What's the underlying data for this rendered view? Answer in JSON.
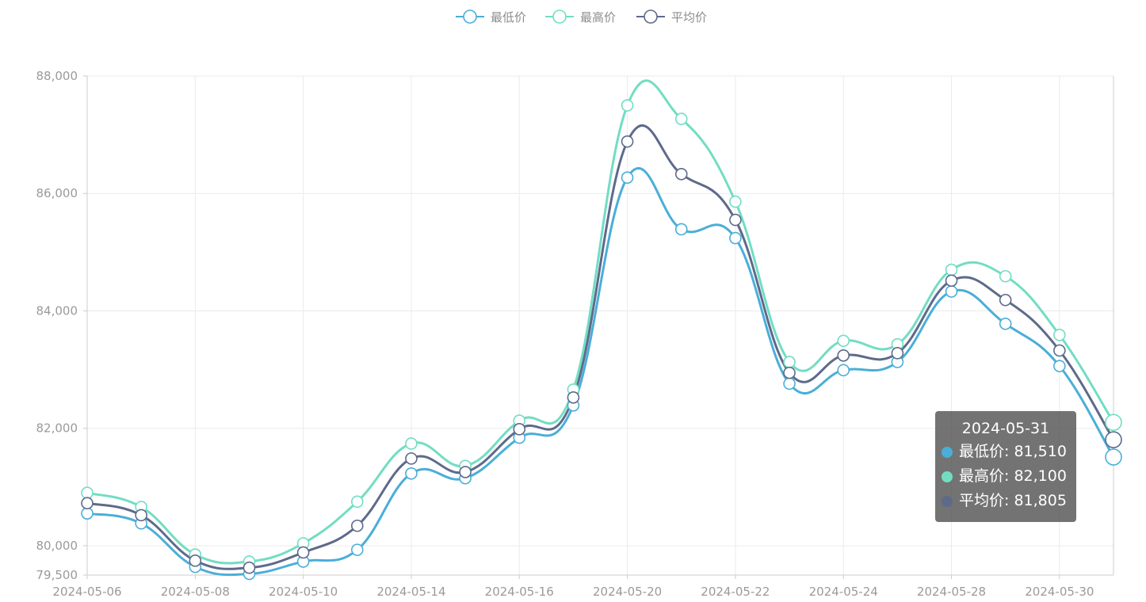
{
  "chart_data": {
    "type": "line",
    "smooth": true,
    "title": "",
    "xlabel": "",
    "ylabel": "",
    "ylim": [
      79500,
      88000
    ],
    "yticks": [
      79500,
      80000,
      82000,
      84000,
      86000,
      88000
    ],
    "categories": [
      "2024-05-06",
      "2024-05-07",
      "2024-05-08",
      "2024-05-09",
      "2024-05-10",
      "2024-05-13",
      "2024-05-14",
      "2024-05-15",
      "2024-05-16",
      "2024-05-17",
      "2024-05-20",
      "2024-05-21",
      "2024-05-22",
      "2024-05-23",
      "2024-05-24",
      "2024-05-27",
      "2024-05-28",
      "2024-05-29",
      "2024-05-30",
      "2024-05-31"
    ],
    "xtick_labels": [
      "2024-05-06",
      "2024-05-08",
      "2024-05-10",
      "2024-05-14",
      "2024-05-16",
      "2024-05-20",
      "2024-05-22",
      "2024-05-24",
      "2024-05-28",
      "2024-05-30"
    ],
    "grid": true,
    "legend_position": "top-center",
    "series": [
      {
        "name": "最低价",
        "color": "#4aaed8",
        "values": [
          80550,
          80380,
          79640,
          79520,
          79730,
          79930,
          81230,
          81150,
          81840,
          82390,
          86270,
          85390,
          85240,
          82760,
          82990,
          83130,
          84330,
          83780,
          83060,
          81510
        ]
      },
      {
        "name": "最高价",
        "color": "#72ddc3",
        "values": [
          80900,
          80660,
          79850,
          79730,
          80040,
          80750,
          81740,
          81360,
          82130,
          82660,
          87500,
          87270,
          85860,
          83130,
          83490,
          83430,
          84700,
          84590,
          83590,
          82100
        ]
      },
      {
        "name": "平均价",
        "color": "#5e6a8a",
        "values": [
          80725,
          80520,
          79745,
          79625,
          79885,
          80340,
          81485,
          81255,
          81985,
          82525,
          86885,
          86330,
          85550,
          82945,
          83240,
          83280,
          84515,
          84185,
          83325,
          81805
        ]
      }
    ],
    "tooltip": {
      "title": "2024-05-31",
      "rows": [
        {
          "name": "最低价",
          "value": "81,510",
          "color": "#4aaed8"
        },
        {
          "name": "最高价",
          "value": "82,100",
          "color": "#72ddc3"
        },
        {
          "name": "平均价",
          "value": "81,805",
          "color": "#5e6a8a"
        }
      ]
    }
  }
}
